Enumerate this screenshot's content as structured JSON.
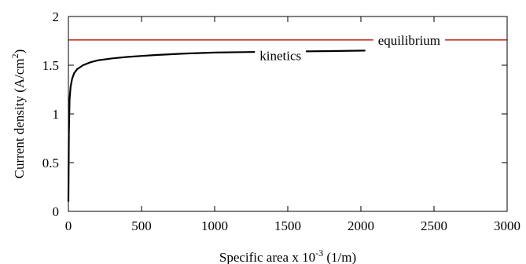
{
  "chart_data": {
    "type": "line",
    "xlabel_main": "Specific area  x 10",
    "xlabel_exp": "-3",
    "xlabel_unit": " (1/m)",
    "ylabel_main": "Current density (A/cm",
    "ylabel_exp": "2",
    "ylabel_close": ")",
    "xlim": [
      0,
      3000
    ],
    "ylim": [
      0,
      2
    ],
    "x_ticks": [
      0,
      500,
      1000,
      1500,
      2000,
      2500,
      3000
    ],
    "y_ticks": [
      0,
      0.5,
      1,
      1.5,
      2
    ],
    "x_tick_labels": [
      "0",
      "500",
      "1000",
      "1500",
      "2000",
      "2500",
      "3000"
    ],
    "y_tick_labels": [
      "0",
      "0.5",
      "1",
      "1.5",
      "2"
    ],
    "series": [
      {
        "name": "equilibrium",
        "color": "#c0392b",
        "x": [
          0,
          3000
        ],
        "y": [
          1.76,
          1.76
        ],
        "label_x": 2330,
        "label_y": 1.76
      },
      {
        "name": "kinetics",
        "color": "#000000",
        "x": [
          0,
          3,
          8,
          15,
          25,
          40,
          60,
          100,
          150,
          200,
          300,
          400,
          500,
          600,
          800,
          1000,
          1200,
          1500,
          1800,
          2030
        ],
        "y": [
          0.1,
          0.8,
          1.15,
          1.28,
          1.36,
          1.42,
          1.46,
          1.5,
          1.53,
          1.55,
          1.57,
          1.585,
          1.595,
          1.605,
          1.62,
          1.63,
          1.635,
          1.64,
          1.645,
          1.65
        ],
        "label_x": 1450,
        "label_y": 1.6
      }
    ]
  }
}
